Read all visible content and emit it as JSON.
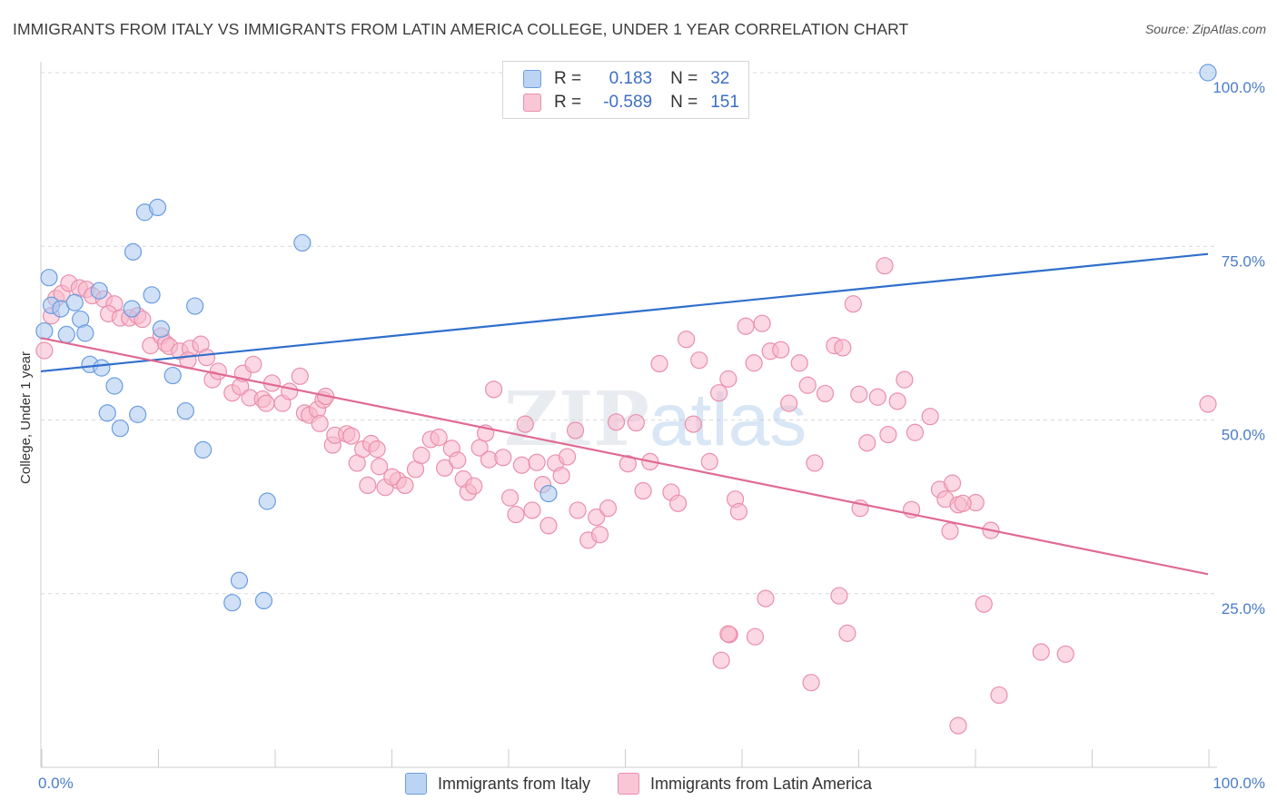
{
  "title": "IMMIGRANTS FROM ITALY VS IMMIGRANTS FROM LATIN AMERICA COLLEGE, UNDER 1 YEAR CORRELATION CHART",
  "source": "Source: ZipAtlas.com",
  "watermark": {
    "zip": "ZIP",
    "atlas": "atlas"
  },
  "legend": {
    "italy": {
      "r_label": "R =",
      "r_value": "0.183",
      "n_label": "N =",
      "n_value": "32"
    },
    "latam": {
      "r_label": "R =",
      "r_value": "-0.589",
      "n_label": "N =",
      "n_value": "151"
    }
  },
  "bottom_legend": {
    "italy": "Immigrants from Italy",
    "latam": "Immigrants from Latin America"
  },
  "colors": {
    "italy_fill": "#a9c8f0",
    "italy_stroke": "#6a9de0",
    "italy_line": "#2f6fcc",
    "latam_fill": "#f7b8cc",
    "latam_stroke": "#ea8fac",
    "latam_line": "#e06a93",
    "grid": "#d8d8d8",
    "tick_text": "#4a7cc9"
  },
  "chart_data": {
    "type": "scatter",
    "title": "IMMIGRANTS FROM ITALY VS IMMIGRANTS FROM LATIN AMERICA COLLEGE, UNDER 1 YEAR CORRELATION CHART",
    "xlabel": "",
    "ylabel": "College, Under 1 year",
    "xlim": [
      0,
      100
    ],
    "ylim": [
      0,
      100
    ],
    "x_ticks": [
      "0.0%",
      "100.0%"
    ],
    "y_ticks": [
      {
        "value": 100,
        "label": "100.0%"
      },
      {
        "value": 75,
        "label": "75.0%"
      },
      {
        "value": 50,
        "label": "50.0%"
      },
      {
        "value": 25,
        "label": "25.0%"
      }
    ],
    "series": [
      {
        "name": "Immigrants from Italy",
        "trend": {
          "x": [
            0,
            100
          ],
          "y": [
            57.0,
            73.9
          ]
        },
        "points": [
          [
            0.7,
            70.5
          ],
          [
            0.9,
            66.5
          ],
          [
            1.7,
            66.0
          ],
          [
            2.9,
            66.9
          ],
          [
            3.4,
            64.5
          ],
          [
            3.8,
            62.5
          ],
          [
            2.2,
            62.3
          ],
          [
            5.0,
            68.6
          ],
          [
            4.2,
            58.0
          ],
          [
            5.2,
            57.5
          ],
          [
            6.3,
            54.9
          ],
          [
            7.8,
            66.0
          ],
          [
            9.5,
            68.0
          ],
          [
            10.3,
            63.1
          ],
          [
            11.3,
            56.4
          ],
          [
            13.2,
            66.4
          ],
          [
            12.4,
            51.3
          ],
          [
            5.7,
            51.0
          ],
          [
            8.3,
            50.8
          ],
          [
            6.8,
            48.8
          ],
          [
            13.9,
            45.7
          ],
          [
            7.9,
            74.2
          ],
          [
            8.9,
            79.9
          ],
          [
            10.0,
            80.6
          ],
          [
            22.4,
            75.5
          ],
          [
            19.4,
            38.3
          ],
          [
            17.0,
            26.9
          ],
          [
            16.4,
            23.7
          ],
          [
            19.1,
            24.0
          ],
          [
            43.5,
            39.4
          ],
          [
            100.0,
            100.0
          ],
          [
            0.3,
            62.8
          ]
        ]
      },
      {
        "name": "Immigrants from Latin America",
        "trend": {
          "x": [
            0,
            100
          ],
          "y": [
            61.8,
            27.8
          ]
        },
        "points": [
          [
            0.3,
            60.0
          ],
          [
            0.9,
            65.0
          ],
          [
            1.3,
            67.5
          ],
          [
            1.8,
            68.2
          ],
          [
            2.4,
            69.7
          ],
          [
            3.3,
            69.0
          ],
          [
            3.9,
            68.8
          ],
          [
            4.4,
            67.9
          ],
          [
            5.4,
            67.4
          ],
          [
            6.3,
            66.7
          ],
          [
            5.8,
            65.3
          ],
          [
            6.8,
            64.7
          ],
          [
            7.6,
            64.7
          ],
          [
            8.3,
            65.0
          ],
          [
            8.7,
            64.5
          ],
          [
            9.4,
            60.7
          ],
          [
            10.3,
            62.1
          ],
          [
            10.7,
            61.0
          ],
          [
            11.0,
            60.6
          ],
          [
            11.9,
            59.9
          ],
          [
            12.8,
            60.3
          ],
          [
            13.7,
            60.9
          ],
          [
            14.2,
            59.0
          ],
          [
            12.6,
            58.6
          ],
          [
            14.7,
            55.8
          ],
          [
            15.2,
            57.0
          ],
          [
            16.4,
            53.9
          ],
          [
            17.1,
            54.8
          ],
          [
            17.3,
            56.7
          ],
          [
            18.2,
            58.0
          ],
          [
            17.9,
            53.2
          ],
          [
            19.0,
            53.0
          ],
          [
            19.3,
            52.4
          ],
          [
            19.8,
            55.3
          ],
          [
            20.7,
            52.4
          ],
          [
            21.3,
            54.1
          ],
          [
            22.2,
            56.3
          ],
          [
            22.6,
            51.0
          ],
          [
            23.0,
            50.7
          ],
          [
            23.7,
            51.5
          ],
          [
            24.2,
            52.9
          ],
          [
            24.4,
            53.4
          ],
          [
            23.9,
            49.5
          ],
          [
            25.0,
            46.4
          ],
          [
            25.2,
            47.8
          ],
          [
            26.2,
            48.0
          ],
          [
            26.6,
            47.7
          ],
          [
            27.1,
            43.8
          ],
          [
            27.6,
            45.8
          ],
          [
            28.3,
            46.6
          ],
          [
            28.8,
            45.8
          ],
          [
            29.0,
            43.3
          ],
          [
            28.0,
            40.6
          ],
          [
            29.5,
            40.3
          ],
          [
            30.6,
            41.3
          ],
          [
            30.1,
            41.8
          ],
          [
            31.2,
            40.6
          ],
          [
            32.1,
            42.9
          ],
          [
            32.6,
            44.9
          ],
          [
            33.4,
            47.2
          ],
          [
            34.1,
            47.5
          ],
          [
            34.6,
            43.1
          ],
          [
            35.2,
            45.9
          ],
          [
            35.7,
            44.2
          ],
          [
            36.2,
            41.5
          ],
          [
            36.6,
            39.6
          ],
          [
            37.1,
            40.5
          ],
          [
            37.6,
            46.0
          ],
          [
            38.1,
            48.1
          ],
          [
            38.4,
            44.3
          ],
          [
            38.8,
            54.4
          ],
          [
            39.6,
            44.6
          ],
          [
            40.2,
            38.8
          ],
          [
            40.7,
            36.4
          ],
          [
            41.2,
            43.5
          ],
          [
            41.5,
            49.4
          ],
          [
            42.1,
            37.0
          ],
          [
            42.5,
            43.9
          ],
          [
            43.0,
            40.7
          ],
          [
            43.5,
            34.8
          ],
          [
            44.1,
            43.8
          ],
          [
            44.6,
            42.0
          ],
          [
            45.1,
            44.7
          ],
          [
            45.8,
            48.5
          ],
          [
            46.0,
            37.0
          ],
          [
            46.9,
            32.7
          ],
          [
            47.6,
            36.0
          ],
          [
            47.9,
            33.5
          ],
          [
            48.6,
            37.3
          ],
          [
            49.3,
            49.7
          ],
          [
            50.3,
            43.7
          ],
          [
            51.0,
            49.6
          ],
          [
            51.6,
            39.8
          ],
          [
            52.2,
            44.0
          ],
          [
            53.0,
            58.1
          ],
          [
            54.0,
            39.6
          ],
          [
            54.6,
            38.0
          ],
          [
            55.3,
            61.6
          ],
          [
            55.9,
            49.4
          ],
          [
            56.4,
            58.6
          ],
          [
            57.3,
            44.0
          ],
          [
            58.1,
            53.9
          ],
          [
            58.9,
            55.9
          ],
          [
            59.5,
            38.6
          ],
          [
            59.8,
            36.8
          ],
          [
            60.4,
            63.5
          ],
          [
            61.1,
            58.2
          ],
          [
            61.8,
            63.9
          ],
          [
            62.5,
            59.9
          ],
          [
            63.4,
            60.1
          ],
          [
            64.1,
            52.4
          ],
          [
            65.0,
            58.2
          ],
          [
            65.7,
            55.0
          ],
          [
            66.3,
            43.8
          ],
          [
            67.2,
            53.8
          ],
          [
            68.0,
            60.7
          ],
          [
            68.7,
            60.4
          ],
          [
            69.6,
            66.7
          ],
          [
            70.1,
            53.7
          ],
          [
            70.8,
            46.7
          ],
          [
            71.7,
            53.3
          ],
          [
            72.6,
            47.9
          ],
          [
            73.4,
            52.7
          ],
          [
            74.0,
            55.8
          ],
          [
            74.9,
            48.2
          ],
          [
            76.2,
            50.5
          ],
          [
            77.0,
            40.0
          ],
          [
            77.5,
            38.6
          ],
          [
            78.1,
            40.9
          ],
          [
            78.6,
            37.8
          ],
          [
            80.1,
            38.1
          ],
          [
            80.8,
            23.5
          ],
          [
            81.4,
            34.1
          ],
          [
            77.9,
            34.0
          ],
          [
            74.6,
            37.1
          ],
          [
            70.2,
            37.3
          ],
          [
            68.4,
            24.7
          ],
          [
            69.1,
            19.3
          ],
          [
            66.0,
            12.2
          ],
          [
            62.1,
            24.3
          ],
          [
            59.0,
            19.1
          ],
          [
            58.3,
            15.4
          ],
          [
            58.9,
            19.2
          ],
          [
            61.2,
            18.8
          ],
          [
            72.3,
            72.2
          ],
          [
            100.0,
            52.3
          ],
          [
            85.7,
            16.6
          ],
          [
            87.8,
            16.3
          ],
          [
            82.1,
            10.4
          ],
          [
            78.6,
            6.0
          ],
          [
            79.0,
            38.0
          ]
        ]
      }
    ],
    "legend_position": "top-center"
  }
}
